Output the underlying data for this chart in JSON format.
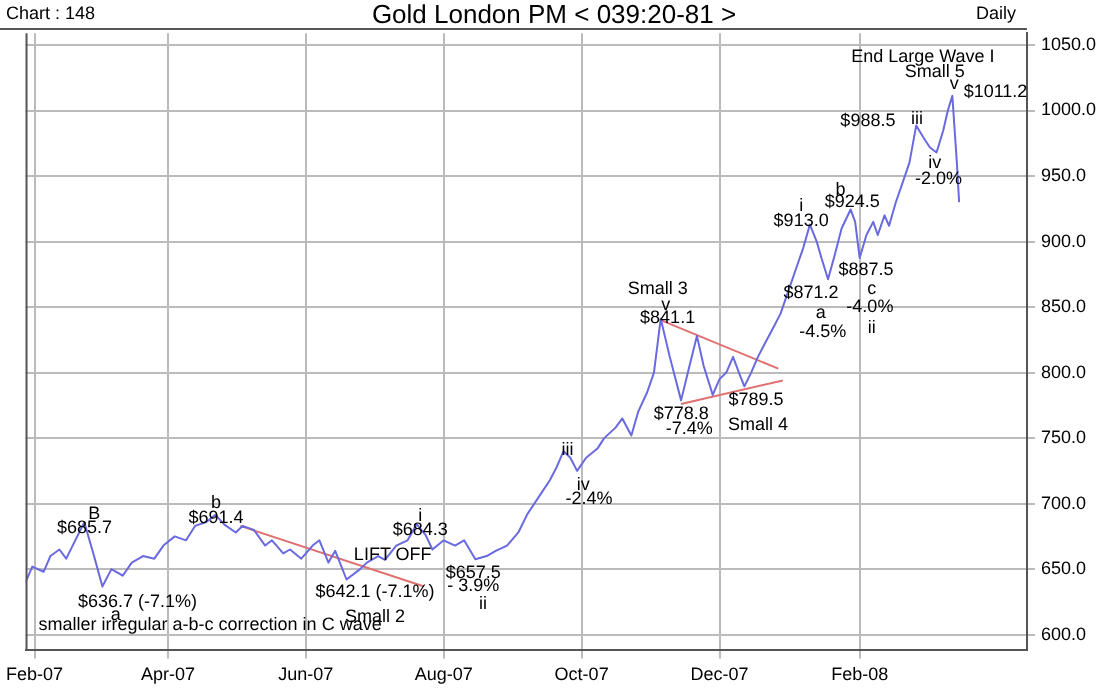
{
  "chart_data": {
    "type": "line",
    "title": "Gold London PM < 039:20-81 >",
    "xlim": [
      "2007-01-28",
      "2008-04-15"
    ],
    "xticks": [
      {
        "value": "2007-02-01",
        "label": "Feb-07"
      },
      {
        "value": "2007-04-01",
        "label": "Apr-07"
      },
      {
        "value": "2007-06-01",
        "label": "Jun-07"
      },
      {
        "value": "2007-08-01",
        "label": "Aug-07"
      },
      {
        "value": "2007-10-01",
        "label": "Oct-07"
      },
      {
        "value": "2007-12-01",
        "label": "Dec-07"
      },
      {
        "value": "2008-02-01",
        "label": "Feb-08"
      }
    ],
    "ylim": [
      588,
      1059
    ],
    "yticks": [
      {
        "value": 600,
        "label": "600.0"
      },
      {
        "value": 650,
        "label": "650.0"
      },
      {
        "value": 700,
        "label": "700.0"
      },
      {
        "value": 750,
        "label": "750.0"
      },
      {
        "value": 800,
        "label": "800.0"
      },
      {
        "value": 850,
        "label": "850.0"
      },
      {
        "value": 900,
        "label": "900.0"
      },
      {
        "value": 950,
        "label": "950.0"
      },
      {
        "value": 1000,
        "label": "1000.0"
      },
      {
        "value": 1050,
        "label": "1050.0"
      }
    ],
    "grid": true,
    "legend": false,
    "marker": "none",
    "line_style": "solid",
    "series": [
      {
        "type": "line",
        "color": "#6a6ae0",
        "x": [
          "2007-01-28",
          "2007-01-31",
          "2007-02-05",
          "2007-02-08",
          "2007-02-12",
          "2007-02-15",
          "2007-02-19",
          "2007-02-23",
          "2007-02-27",
          "2007-03-03",
          "2007-03-07",
          "2007-03-12",
          "2007-03-16",
          "2007-03-21",
          "2007-03-26",
          "2007-03-30",
          "2007-04-04",
          "2007-04-09",
          "2007-04-13",
          "2007-04-18",
          "2007-04-22",
          "2007-04-26",
          "2007-05-01",
          "2007-05-04",
          "2007-05-09",
          "2007-05-14",
          "2007-05-17",
          "2007-05-22",
          "2007-05-25",
          "2007-05-30",
          "2007-06-04",
          "2007-06-07",
          "2007-06-11",
          "2007-06-14",
          "2007-06-19",
          "2007-06-25",
          "2007-06-28",
          "2007-07-03",
          "2007-07-06",
          "2007-07-11",
          "2007-07-16",
          "2007-07-20",
          "2007-07-24",
          "2007-07-27",
          "2007-08-01",
          "2007-08-06",
          "2007-08-10",
          "2007-08-15",
          "2007-08-20",
          "2007-08-24",
          "2007-08-29",
          "2007-09-03",
          "2007-09-07",
          "2007-09-12",
          "2007-09-17",
          "2007-09-20",
          "2007-09-23",
          "2007-09-26",
          "2007-09-29",
          "2007-10-03",
          "2007-10-08",
          "2007-10-11",
          "2007-10-16",
          "2007-10-19",
          "2007-10-23",
          "2007-10-26",
          "2007-10-30",
          "2007-11-02",
          "2007-11-05",
          "2007-11-09",
          "2007-11-14",
          "2007-11-17",
          "2007-11-21",
          "2007-11-24",
          "2007-11-28",
          "2007-12-01",
          "2007-12-04",
          "2007-12-07",
          "2007-12-10",
          "2007-12-12",
          "2007-12-15",
          "2007-12-18",
          "2007-12-21",
          "2007-12-25",
          "2007-12-28",
          "2008-01-01",
          "2008-01-04",
          "2008-01-07",
          "2008-01-10",
          "2008-01-13",
          "2008-01-15",
          "2008-01-18",
          "2008-01-21",
          "2008-01-24",
          "2008-01-28",
          "2008-01-30",
          "2008-02-01",
          "2008-02-04",
          "2008-02-07",
          "2008-02-09",
          "2008-02-12",
          "2008-02-14",
          "2008-02-17",
          "2008-02-20",
          "2008-02-23",
          "2008-02-26",
          "2008-02-29",
          "2008-03-03",
          "2008-03-06",
          "2008-03-09",
          "2008-03-11",
          "2008-03-13",
          "2008-03-15",
          "2008-03-16"
        ],
        "values": [
          640,
          652,
          648,
          660,
          665,
          658,
          672,
          685.7,
          662,
          636.7,
          650,
          645,
          655,
          660,
          658,
          668,
          675,
          672,
          683,
          686,
          691.4,
          684,
          678,
          683,
          680,
          668,
          672,
          662,
          665,
          658,
          668,
          672,
          655,
          664,
          642.1,
          650,
          655,
          660,
          657,
          668,
          672,
          684.3,
          676,
          665,
          672,
          668,
          672,
          657.5,
          660,
          664,
          668,
          678,
          692,
          705,
          718,
          728,
          740,
          735,
          725,
          735,
          742,
          750,
          758,
          765,
          752,
          770,
          785,
          800,
          841.1,
          812,
          778.8,
          800,
          828,
          805,
          783,
          795,
          800,
          812,
          798,
          789.5,
          800,
          812,
          822,
          835,
          845,
          865,
          880,
          895,
          913.0,
          900,
          888,
          871.2,
          890,
          910,
          924.5,
          915,
          887.5,
          905,
          915,
          905,
          920,
          912,
          930,
          945,
          960,
          988.5,
          980,
          972,
          968,
          985,
          1000,
          1011.2,
          960,
          930
        ]
      },
      {
        "type": "line",
        "color": "#e07070",
        "x": [
          "2007-05-03",
          "2007-07-23"
        ],
        "values": [
          683,
          637
        ]
      },
      {
        "type": "line",
        "color": "#e07070",
        "x": [
          "2007-11-05",
          "2007-12-27"
        ],
        "values": [
          840,
          803
        ]
      },
      {
        "type": "line",
        "color": "#e07070",
        "x": [
          "2007-11-14",
          "2007-12-29"
        ],
        "values": [
          776,
          794
        ]
      }
    ],
    "annotations": [
      "Chart : 148",
      "Daily",
      "B",
      "$685.7",
      "$636.7 (-7.1%)",
      "a",
      "smaller irregular a-b-c correction in C wave",
      "b",
      "$691.4",
      "LIFT OFF",
      "i",
      "$684.3",
      "$642.1 (-7.1%)",
      "Small 2",
      "$657.5",
      "- 3.9%",
      "ii",
      "iii",
      "iv",
      "-2.4%",
      "Small 3",
      "v",
      "$841.1",
      "$778.8",
      "-7.4%",
      "$789.5",
      "Small 4",
      "i",
      "$913.0",
      "b",
      "$924.5",
      "$871.2",
      "a",
      "-4.5%",
      "$887.5",
      "c",
      "-4.0%",
      "ii",
      "$988.5",
      "iii",
      "End Large Wave I",
      "Small 5",
      "v",
      "$1011.2",
      "iv",
      "-2.0%"
    ]
  }
}
